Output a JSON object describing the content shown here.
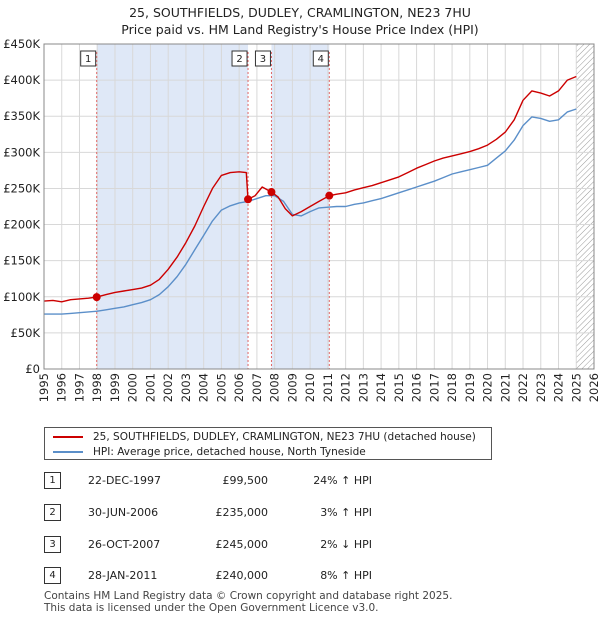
{
  "chart_data": {
    "type": "line",
    "title": "25, SOUTHFIELDS, DUDLEY, CRAMLINGTON, NE23 7HU",
    "subtitle": "Price paid vs. HM Land Registry's House Price Index (HPI)",
    "xlabel": "",
    "ylabel": "",
    "xlim": [
      1995,
      2026
    ],
    "ylim": [
      0,
      450000
    ],
    "x_ticks": [
      "1995",
      "1996",
      "1997",
      "1998",
      "1999",
      "2000",
      "2001",
      "2002",
      "2003",
      "2004",
      "2005",
      "2006",
      "2007",
      "2008",
      "2009",
      "2010",
      "2011",
      "2012",
      "2013",
      "2014",
      "2015",
      "2016",
      "2017",
      "2018",
      "2019",
      "2020",
      "2021",
      "2022",
      "2023",
      "2024",
      "2025",
      "2026"
    ],
    "y_ticks": [
      {
        "value": 0,
        "label": "£0"
      },
      {
        "value": 50000,
        "label": "£50K"
      },
      {
        "value": 100000,
        "label": "£100K"
      },
      {
        "value": 150000,
        "label": "£150K"
      },
      {
        "value": 200000,
        "label": "£200K"
      },
      {
        "value": 250000,
        "label": "£250K"
      },
      {
        "value": 300000,
        "label": "£300K"
      },
      {
        "value": 350000,
        "label": "£350K"
      },
      {
        "value": 400000,
        "label": "£400K"
      },
      {
        "value": 450000,
        "label": "£450K"
      }
    ],
    "grid": true,
    "shaded_periods": [
      [
        1997.97,
        2006.5
      ],
      [
        2007.82,
        2011.08
      ]
    ],
    "hatched_from": 2025.0,
    "series": [
      {
        "name": "25, SOUTHFIELDS, DUDLEY, CRAMLINGTON, NE23 7HU (detached house)",
        "color": "#cc0000",
        "x": [
          1995.0,
          1995.5,
          1996.0,
          1996.5,
          1997.0,
          1997.5,
          1997.97,
          1998.5,
          1999.0,
          1999.5,
          2000.0,
          2000.5,
          2001.0,
          2001.5,
          2002.0,
          2002.5,
          2003.0,
          2003.5,
          2004.0,
          2004.5,
          2005.0,
          2005.5,
          2006.0,
          2006.4,
          2006.5,
          2006.9,
          2007.3,
          2007.82,
          2008.2,
          2008.6,
          2009.0,
          2009.5,
          2010.0,
          2010.5,
          2011.08,
          2011.5,
          2012.0,
          2012.5,
          2013.0,
          2013.5,
          2014.0,
          2014.5,
          2015.0,
          2015.5,
          2016.0,
          2016.5,
          2017.0,
          2017.5,
          2018.0,
          2018.5,
          2019.0,
          2019.5,
          2020.0,
          2020.5,
          2021.0,
          2021.5,
          2022.0,
          2022.5,
          2023.0,
          2023.5,
          2024.0,
          2024.5,
          2025.0
        ],
        "values": [
          94000,
          95000,
          93000,
          96000,
          97000,
          98000,
          99500,
          103000,
          106000,
          108000,
          110000,
          112000,
          116000,
          124000,
          138000,
          155000,
          175000,
          198000,
          225000,
          250000,
          268000,
          272000,
          273000,
          272000,
          235000,
          240000,
          252000,
          245000,
          238000,
          222000,
          212000,
          218000,
          225000,
          232000,
          240000,
          242000,
          244000,
          248000,
          251000,
          254000,
          258000,
          262000,
          266000,
          272000,
          278000,
          283000,
          288000,
          292000,
          295000,
          298000,
          301000,
          305000,
          310000,
          318000,
          328000,
          345000,
          372000,
          385000,
          382000,
          378000,
          385000,
          400000,
          405000
        ]
      },
      {
        "name": "HPI: Average price, detached house, North Tyneside",
        "color": "#5b8fc9",
        "x": [
          1995.0,
          1995.5,
          1996.0,
          1996.5,
          1997.0,
          1997.5,
          1998.0,
          1998.5,
          1999.0,
          1999.5,
          2000.0,
          2000.5,
          2001.0,
          2001.5,
          2002.0,
          2002.5,
          2003.0,
          2003.5,
          2004.0,
          2004.5,
          2005.0,
          2005.5,
          2006.0,
          2006.5,
          2007.0,
          2007.5,
          2008.0,
          2008.5,
          2009.0,
          2009.5,
          2010.0,
          2010.5,
          2011.0,
          2011.5,
          2012.0,
          2012.5,
          2013.0,
          2013.5,
          2014.0,
          2014.5,
          2015.0,
          2015.5,
          2016.0,
          2016.5,
          2017.0,
          2017.5,
          2018.0,
          2018.5,
          2019.0,
          2019.5,
          2020.0,
          2020.5,
          2021.0,
          2021.5,
          2022.0,
          2022.5,
          2023.0,
          2023.5,
          2024.0,
          2024.5,
          2025.0
        ],
        "values": [
          76000,
          76000,
          76000,
          77000,
          78000,
          79000,
          80000,
          82000,
          84000,
          86000,
          89000,
          92000,
          96000,
          103000,
          114000,
          128000,
          145000,
          165000,
          185000,
          205000,
          220000,
          226000,
          230000,
          232000,
          236000,
          240000,
          240000,
          232000,
          214000,
          212000,
          218000,
          223000,
          224000,
          225000,
          225000,
          228000,
          230000,
          233000,
          236000,
          240000,
          244000,
          248000,
          252000,
          256000,
          260000,
          265000,
          270000,
          273000,
          276000,
          279000,
          282000,
          292000,
          302000,
          317000,
          337000,
          349000,
          347000,
          343000,
          345000,
          356000,
          360000
        ]
      }
    ],
    "sales": [
      {
        "label": "1",
        "x": 1997.97,
        "value": 99500
      },
      {
        "label": "2",
        "x": 2006.5,
        "value": 235000
      },
      {
        "label": "3",
        "x": 2007.82,
        "value": 245000
      },
      {
        "label": "4",
        "x": 2011.08,
        "value": 240000
      }
    ]
  },
  "legend": {
    "property_label": "25, SOUTHFIELDS, DUDLEY, CRAMLINGTON, NE23 7HU (detached house)",
    "hpi_label": "HPI: Average price, detached house, North Tyneside"
  },
  "transactions": [
    {
      "num": "1",
      "date": "22-DEC-1997",
      "price": "£99,500",
      "hpi": "24% ↑ HPI"
    },
    {
      "num": "2",
      "date": "30-JUN-2006",
      "price": "£235,000",
      "hpi": "3% ↑ HPI"
    },
    {
      "num": "3",
      "date": "26-OCT-2007",
      "price": "£245,000",
      "hpi": "2% ↓ HPI"
    },
    {
      "num": "4",
      "date": "28-JAN-2011",
      "price": "£240,000",
      "hpi": "8% ↑ HPI"
    }
  ],
  "footer": {
    "line1": "Contains HM Land Registry data © Crown copyright and database right 2025.",
    "line2": "This data is licensed under the Open Government Licence v3.0."
  }
}
